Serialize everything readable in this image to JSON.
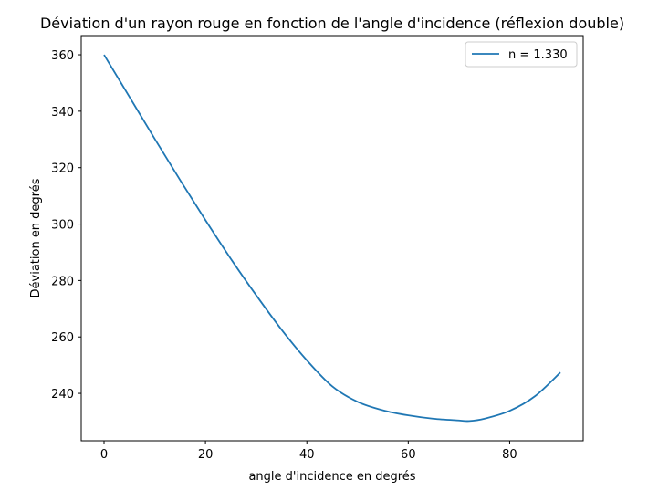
{
  "chart_data": {
    "type": "line",
    "title": "Déviation d'un rayon rouge en fonction de l'angle d'incidence (réflexion double)",
    "xlabel": "angle d'incidence en degrés",
    "ylabel": "Déviation en degrés",
    "xlim": [
      -4.5,
      94.5
    ],
    "ylim": [
      223.2,
      366.8
    ],
    "xticks": [
      0,
      20,
      40,
      60,
      80
    ],
    "yticks": [
      240,
      260,
      280,
      300,
      320,
      340,
      360
    ],
    "grid": false,
    "legend_position": "top-right",
    "series": [
      {
        "name": "n = 1.330",
        "color": "#1f77b4",
        "x": [
          0,
          5,
          10,
          15,
          20,
          25,
          30,
          35,
          40,
          45,
          50,
          55,
          60,
          65,
          70,
          72,
          75,
          80,
          85,
          90
        ],
        "y": [
          360,
          345.1,
          330.2,
          315.6,
          301.4,
          287.7,
          274.8,
          262.6,
          251.7,
          242.5,
          237.0,
          234.0,
          232.2,
          231.0,
          230.4,
          230.2,
          231.0,
          233.8,
          239.0,
          247.4
        ]
      }
    ]
  }
}
